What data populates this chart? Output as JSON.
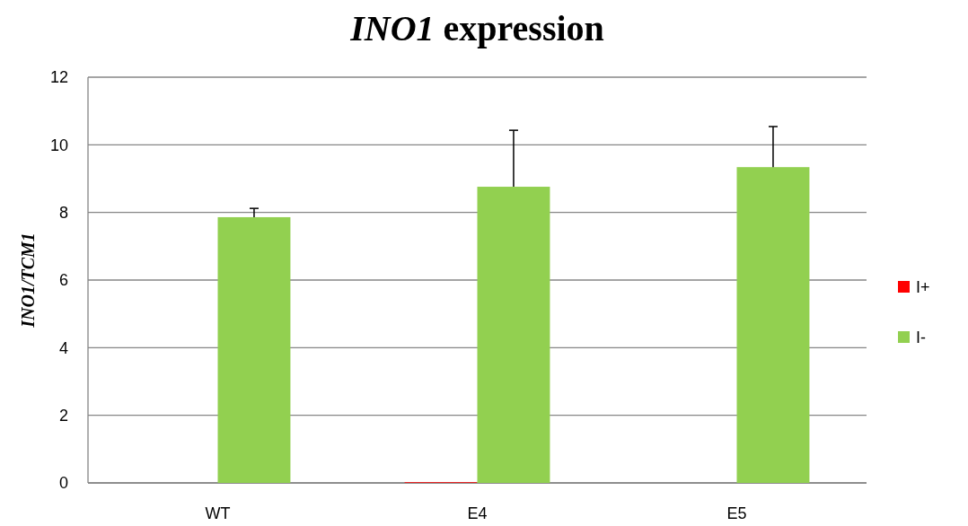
{
  "chart_data": {
    "type": "bar",
    "title": "INO1 expression",
    "ylabel": "INO1/TCM1",
    "categories": [
      "WT",
      "E4",
      "E5"
    ],
    "series": [
      {
        "name": "I+",
        "color": "#ff0000",
        "values": [
          0,
          0.02,
          0
        ]
      },
      {
        "name": "I-",
        "color": "#92d050",
        "values": [
          7.86,
          8.76,
          9.34
        ],
        "errors": [
          [
            7.86,
            8.12
          ],
          [
            8.76,
            10.43
          ],
          [
            9.34,
            10.54
          ]
        ]
      }
    ],
    "ylim": [
      0,
      12
    ],
    "yticks": [
      0,
      2,
      4,
      6,
      8,
      10,
      12
    ],
    "grid": "y",
    "legend": "right"
  }
}
